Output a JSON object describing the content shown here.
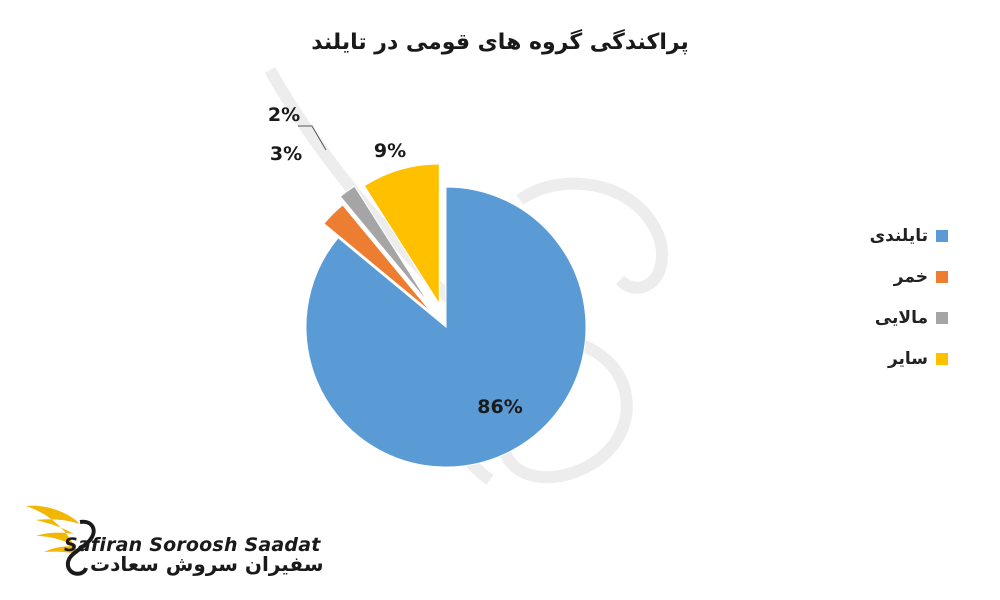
{
  "chart_data": {
    "type": "pie",
    "title": "پراکندگی گروه های قومی در تایلند",
    "categories": [
      "تایلندی",
      "خمر",
      "مالایی",
      "سایر"
    ],
    "values": [
      86,
      3,
      2,
      9
    ],
    "data_labels": [
      "86%",
      "3%",
      "2%",
      "9%"
    ],
    "colors": [
      "#5b9bd5",
      "#ed7d31",
      "#a5a5a5",
      "#ffc000"
    ],
    "legend_position": "right",
    "exploded": true
  },
  "logo": {
    "name_en": "Safiran Soroosh Saadat",
    "name_fa": "سفیران سروش سعادت",
    "accent_color": "#f2b705"
  }
}
